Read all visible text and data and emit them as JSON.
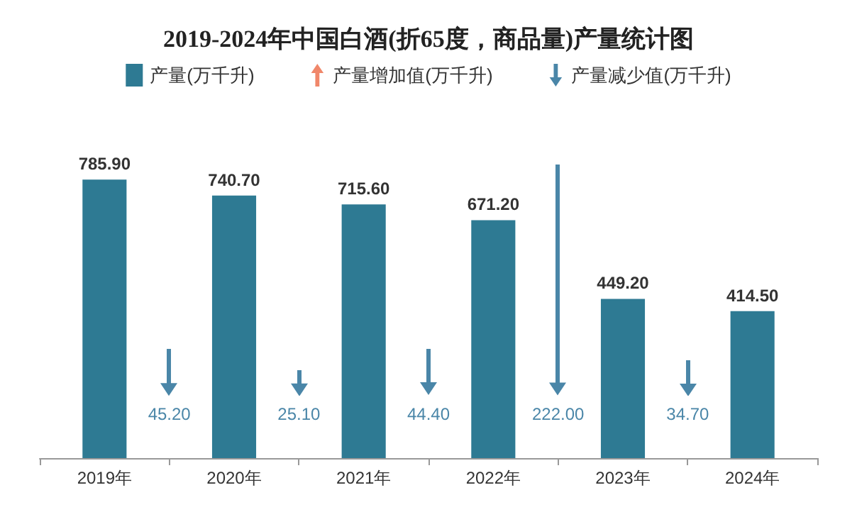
{
  "chart_data": {
    "type": "bar",
    "title": "2019-2024年中国白酒(折65度，商品量)产量统计图",
    "categories": [
      "2019年",
      "2020年",
      "2021年",
      "2022年",
      "2023年",
      "2024年"
    ],
    "series": [
      {
        "name": "产量(万千升)",
        "color": "#2e7a93",
        "values": [
          785.9,
          740.7,
          715.6,
          671.2,
          449.2,
          414.5
        ],
        "value_labels": [
          "785.90",
          "740.70",
          "715.60",
          "671.20",
          "449.20",
          "414.50"
        ]
      },
      {
        "name": "产量增加值(万千升)",
        "type": "other",
        "color": "#f0876a",
        "values": [
          null,
          null,
          null,
          null,
          null,
          null
        ]
      },
      {
        "name": "产量减少值(万千升)",
        "type": "other",
        "color": "#4a86a8",
        "values": [
          null,
          null,
          null,
          null,
          null,
          null
        ]
      }
    ],
    "annotations": [
      "45.20",
      "25.10",
      "44.40",
      "222.00",
      "34.70"
    ],
    "legend": "top",
    "tick_labels": "x",
    "grid": false
  }
}
